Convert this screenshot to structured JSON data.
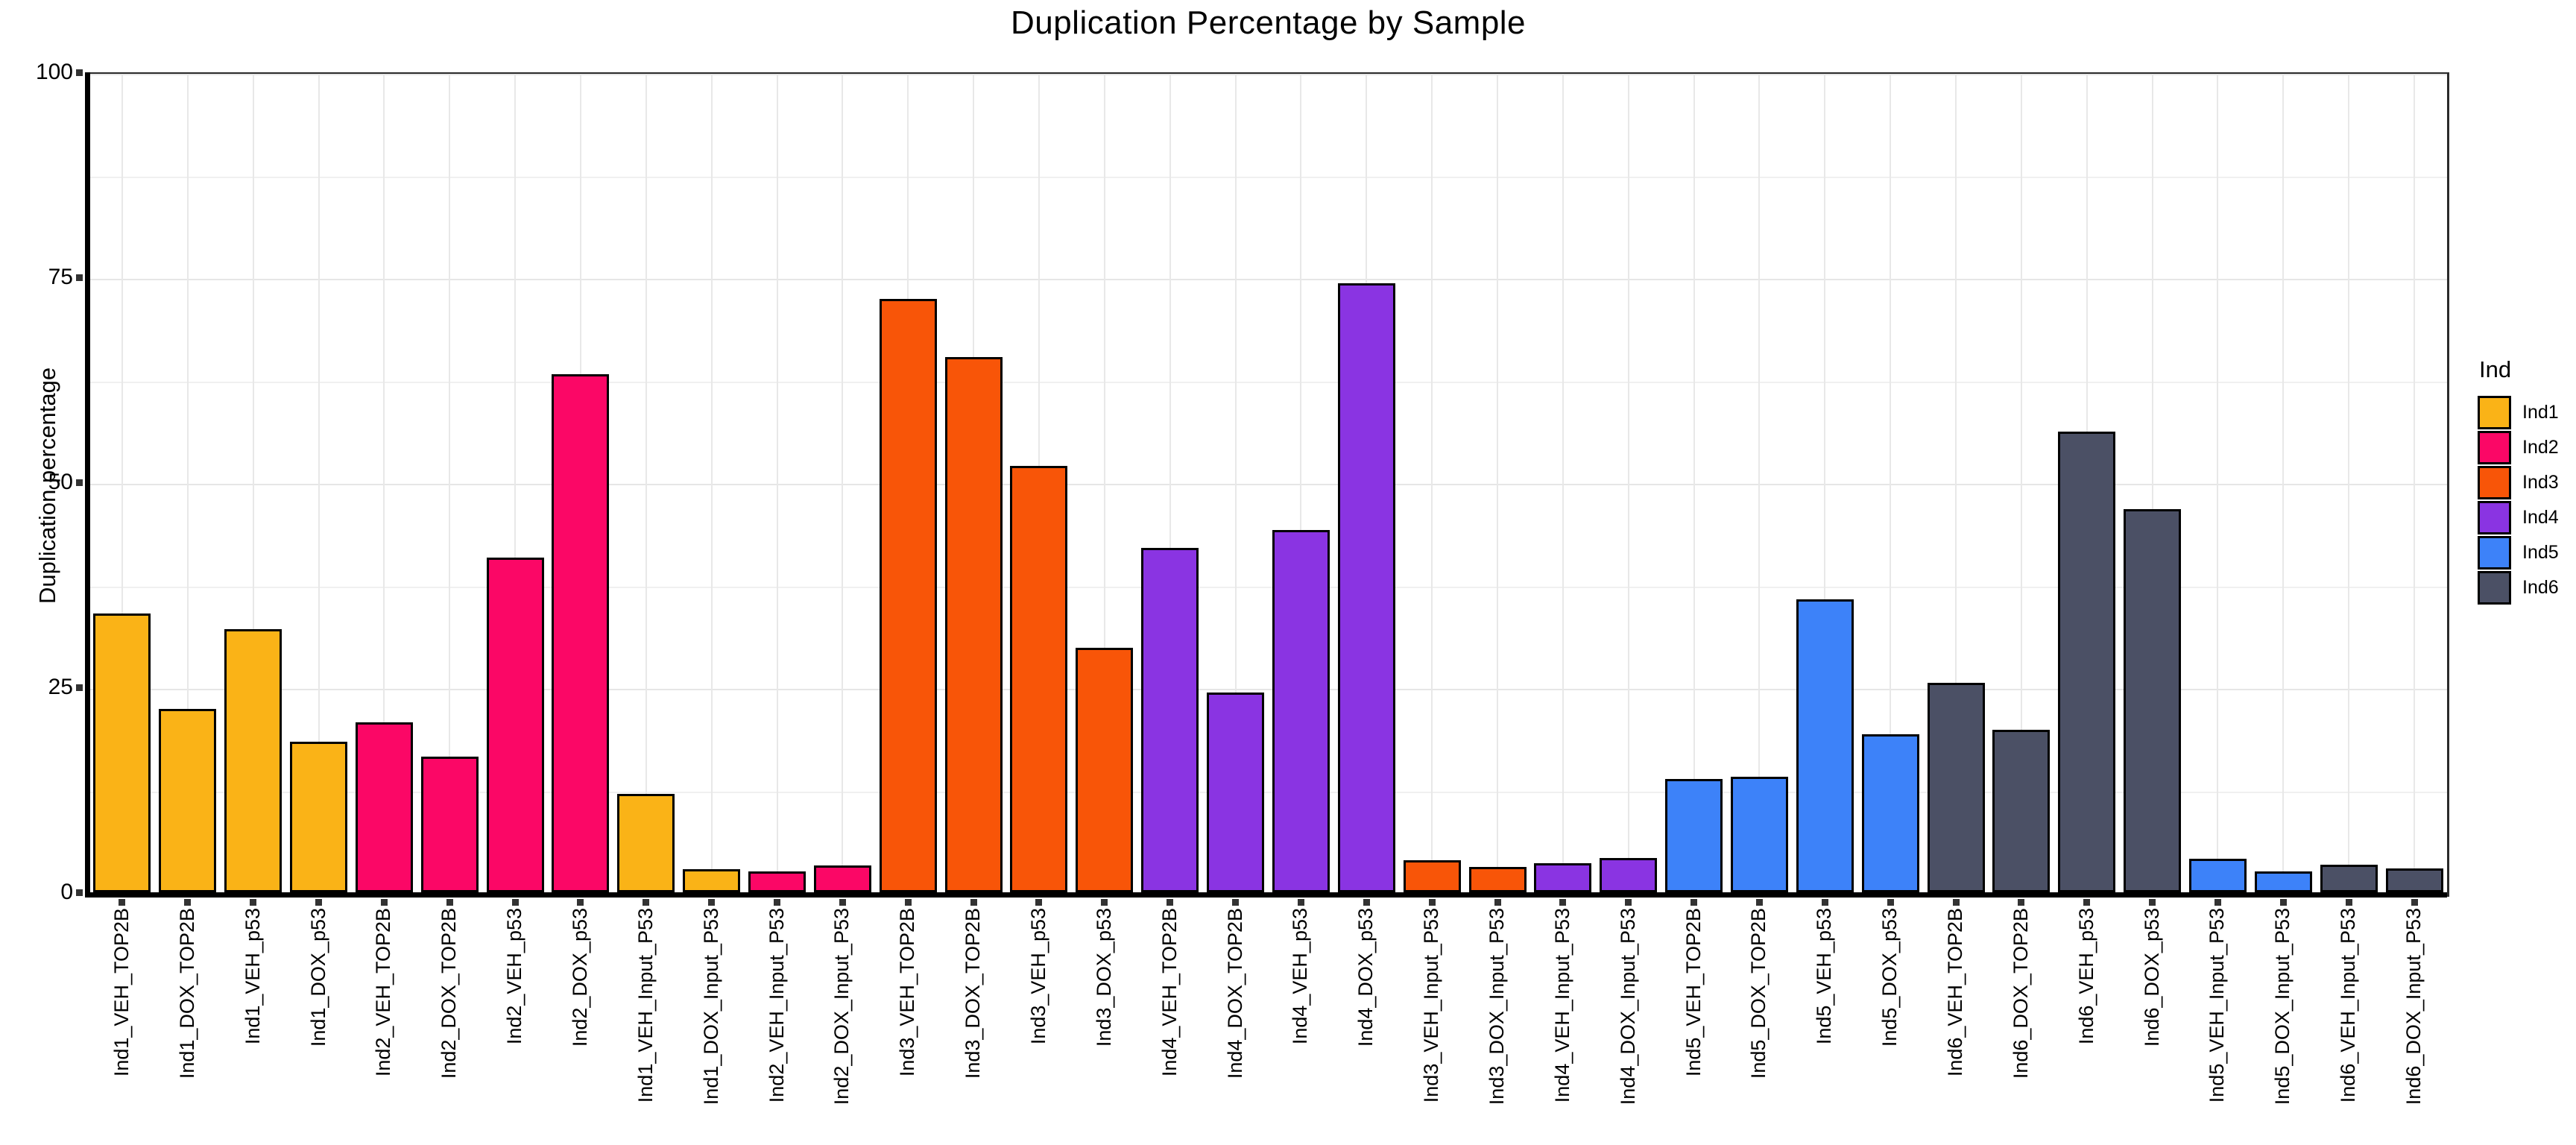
{
  "title": "Duplication Percentage by Sample",
  "legend": {
    "title": "Ind",
    "entries": [
      {
        "label": "Ind1",
        "color": "#FAB317"
      },
      {
        "label": "Ind2",
        "color": "#FB0766"
      },
      {
        "label": "Ind3",
        "color": "#F85508"
      },
      {
        "label": "Ind4",
        "color": "#8A34E2"
      },
      {
        "label": "Ind5",
        "color": "#3D82F9"
      },
      {
        "label": "Ind6",
        "color": "#4B5065"
      }
    ]
  },
  "chart_data": {
    "type": "bar",
    "title": "Duplication Percentage by Sample",
    "xlabel": "",
    "ylabel": "Duplication percentage",
    "ylim": [
      0,
      100
    ],
    "y_major_ticks": [
      0,
      25,
      50,
      75,
      100
    ],
    "y_minor_gridlines": [
      12.5,
      37.5,
      62.5,
      87.5
    ],
    "grid": true,
    "legend_position": "right",
    "group_colors": {
      "Ind1": "#FAB317",
      "Ind2": "#FB0766",
      "Ind3": "#F85508",
      "Ind4": "#8A34E2",
      "Ind5": "#3D82F9",
      "Ind6": "#4B5065"
    },
    "bars": [
      {
        "label": "Ind1_VEH_TOP2B",
        "value": 34.0,
        "group": "Ind1"
      },
      {
        "label": "Ind1_DOX_TOP2B",
        "value": 22.4,
        "group": "Ind1"
      },
      {
        "label": "Ind1_VEH_p53",
        "value": 32.1,
        "group": "Ind1"
      },
      {
        "label": "Ind1_DOX_p53",
        "value": 18.4,
        "group": "Ind1"
      },
      {
        "label": "Ind2_VEH_TOP2B",
        "value": 20.7,
        "group": "Ind2"
      },
      {
        "label": "Ind2_DOX_TOP2B",
        "value": 16.5,
        "group": "Ind2"
      },
      {
        "label": "Ind2_VEH_p53",
        "value": 40.8,
        "group": "Ind2"
      },
      {
        "label": "Ind2_DOX_p53",
        "value": 63.2,
        "group": "Ind2"
      },
      {
        "label": "Ind1_VEH_Input_P53",
        "value": 12.0,
        "group": "Ind1"
      },
      {
        "label": "Ind1_DOX_Input_P53",
        "value": 2.8,
        "group": "Ind1"
      },
      {
        "label": "Ind2_VEH_Input_P53",
        "value": 2.5,
        "group": "Ind2"
      },
      {
        "label": "Ind2_DOX_Input_P53",
        "value": 3.3,
        "group": "Ind2"
      },
      {
        "label": "Ind3_VEH_TOP2B",
        "value": 72.4,
        "group": "Ind3"
      },
      {
        "label": "Ind3_DOX_TOP2B",
        "value": 65.3,
        "group": "Ind3"
      },
      {
        "label": "Ind3_VEH_p53",
        "value": 52.0,
        "group": "Ind3"
      },
      {
        "label": "Ind3_DOX_p53",
        "value": 29.8,
        "group": "Ind3"
      },
      {
        "label": "Ind4_VEH_TOP2B",
        "value": 42.0,
        "group": "Ind4"
      },
      {
        "label": "Ind4_DOX_TOP2B",
        "value": 24.4,
        "group": "Ind4"
      },
      {
        "label": "Ind4_VEH_p53",
        "value": 44.2,
        "group": "Ind4"
      },
      {
        "label": "Ind4_DOX_p53",
        "value": 74.3,
        "group": "Ind4"
      },
      {
        "label": "Ind3_VEH_Input_P53",
        "value": 3.9,
        "group": "Ind3"
      },
      {
        "label": "Ind3_DOX_Input_P53",
        "value": 3.1,
        "group": "Ind3"
      },
      {
        "label": "Ind4_VEH_Input_P53",
        "value": 3.5,
        "group": "Ind4"
      },
      {
        "label": "Ind4_DOX_Input_P53",
        "value": 4.2,
        "group": "Ind4"
      },
      {
        "label": "Ind5_VEH_TOP2B",
        "value": 13.8,
        "group": "Ind5"
      },
      {
        "label": "Ind5_DOX_TOP2B",
        "value": 14.1,
        "group": "Ind5"
      },
      {
        "label": "Ind5_VEH_p53",
        "value": 35.7,
        "group": "Ind5"
      },
      {
        "label": "Ind5_DOX_p53",
        "value": 19.3,
        "group": "Ind5"
      },
      {
        "label": "Ind6_VEH_TOP2B",
        "value": 25.5,
        "group": "Ind6"
      },
      {
        "label": "Ind6_DOX_TOP2B",
        "value": 19.8,
        "group": "Ind6"
      },
      {
        "label": "Ind6_VEH_p53",
        "value": 56.2,
        "group": "Ind6"
      },
      {
        "label": "Ind6_DOX_p53",
        "value": 46.7,
        "group": "Ind6"
      },
      {
        "label": "Ind5_VEH_Input_P53",
        "value": 4.1,
        "group": "Ind5"
      },
      {
        "label": "Ind5_DOX_Input_P53",
        "value": 2.5,
        "group": "Ind5"
      },
      {
        "label": "Ind6_VEH_Input_P53",
        "value": 3.4,
        "group": "Ind6"
      },
      {
        "label": "Ind6_DOX_Input_P53",
        "value": 2.9,
        "group": "Ind6"
      }
    ]
  }
}
